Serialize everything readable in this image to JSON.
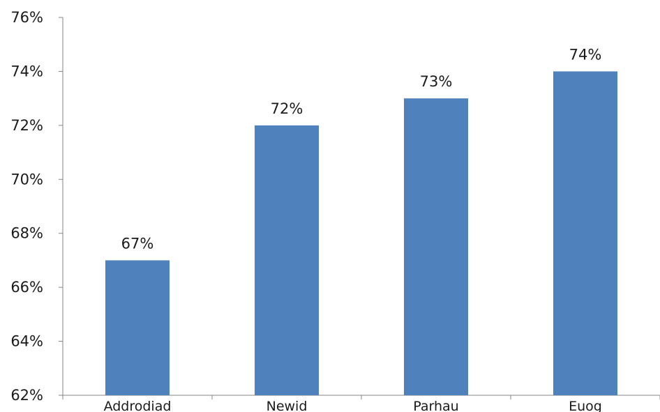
{
  "chart_data": {
    "type": "bar",
    "categories": [
      "Addrodiad",
      "Newid",
      "Parhau",
      "Euog"
    ],
    "values": [
      67,
      72,
      73,
      74
    ],
    "data_labels": [
      "67%",
      "72%",
      "73%",
      "74%"
    ],
    "y_ticks": [
      62,
      64,
      66,
      68,
      70,
      72,
      74,
      76
    ],
    "y_tick_labels": [
      "62%",
      "64%",
      "66%",
      "68%",
      "70%",
      "72%",
      "74%",
      "76%"
    ],
    "ylim": [
      62,
      76
    ],
    "title": "",
    "xlabel": "",
    "ylabel": "",
    "grid": false,
    "legend": "none",
    "bar_color": "#4f81bd",
    "axis_color": "#868686"
  }
}
